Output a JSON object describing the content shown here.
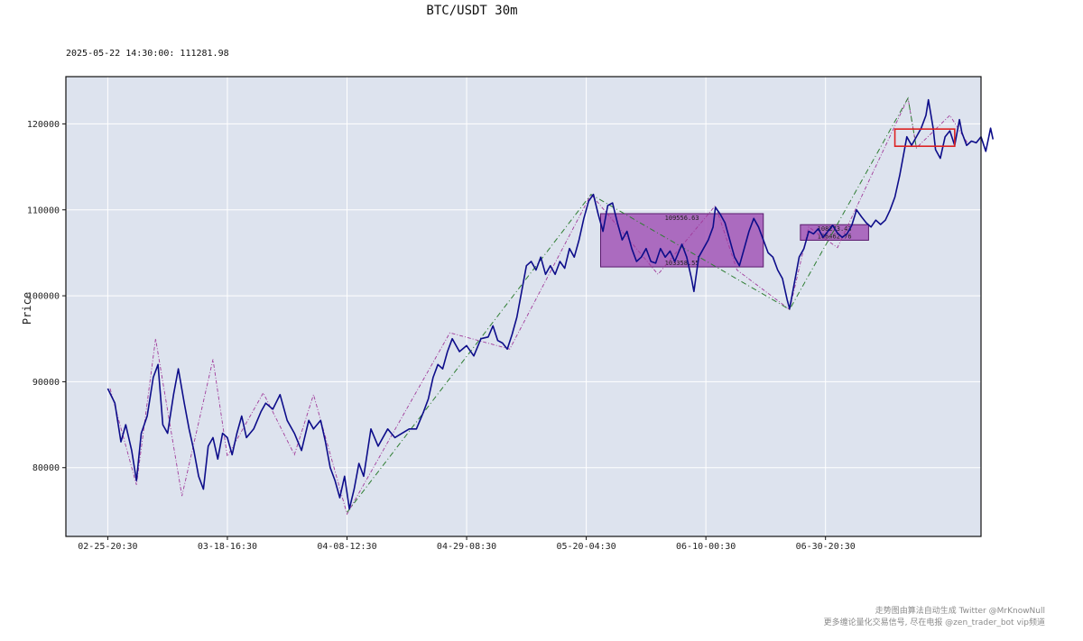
{
  "chart_data": {
    "type": "line",
    "title": "BTC/USDT 30m",
    "info": "2025-05-22 14:30:00: 111281.98",
    "ylabel": "Price",
    "xlabel": "",
    "ylim": [
      72000,
      125500
    ],
    "xlim": [
      -3.5,
      73
    ],
    "grid": true,
    "colors": {
      "price": "#0d0d8a",
      "plot_bg": "#dde3ee",
      "grid": "#ffffff",
      "zone": "#a050b4",
      "zone_edge": "#5a1a6e",
      "recent_box": "#dd2222",
      "zigzag_major": "#2e7d32",
      "zigzag_minor": "#a03a9a"
    },
    "y_ticks": [
      80000,
      90000,
      100000,
      110000,
      120000
    ],
    "x_ticks": [
      {
        "x": 0,
        "label": "02-25-20:30"
      },
      {
        "x": 10,
        "label": "03-18-16:30"
      },
      {
        "x": 20,
        "label": "04-08-12:30"
      },
      {
        "x": 30,
        "label": "04-29-08:30"
      },
      {
        "x": 40,
        "label": "05-20-04:30"
      },
      {
        "x": 50,
        "label": "06-10-00:30"
      },
      {
        "x": 60,
        "label": "06-30-20:30"
      }
    ],
    "series": [
      {
        "values": [
          [
            0,
            89200
          ],
          [
            0.6,
            87500
          ],
          [
            1.1,
            83000
          ],
          [
            1.5,
            85000
          ],
          [
            2.0,
            82000
          ],
          [
            2.4,
            78500
          ],
          [
            2.8,
            84000
          ],
          [
            3.3,
            86000
          ],
          [
            3.8,
            90500
          ],
          [
            4.2,
            92000
          ],
          [
            4.6,
            85000
          ],
          [
            5.0,
            84000
          ],
          [
            5.5,
            88500
          ],
          [
            5.9,
            91500
          ],
          [
            6.4,
            87500
          ],
          [
            6.8,
            84500
          ],
          [
            7.2,
            82000
          ],
          [
            7.6,
            79000
          ],
          [
            8.0,
            77500
          ],
          [
            8.4,
            82500
          ],
          [
            8.8,
            83500
          ],
          [
            9.2,
            81000
          ],
          [
            9.6,
            84000
          ],
          [
            10.0,
            83500
          ],
          [
            10.4,
            81500
          ],
          [
            10.8,
            84000
          ],
          [
            11.2,
            86000
          ],
          [
            11.6,
            83500
          ],
          [
            12.2,
            84500
          ],
          [
            12.8,
            86500
          ],
          [
            13.2,
            87500
          ],
          [
            13.8,
            86800
          ],
          [
            14.4,
            88500
          ],
          [
            15.0,
            85500
          ],
          [
            15.6,
            84000
          ],
          [
            16.2,
            82000
          ],
          [
            16.8,
            85500
          ],
          [
            17.2,
            84500
          ],
          [
            17.8,
            85500
          ],
          [
            18.2,
            83000
          ],
          [
            18.6,
            80000
          ],
          [
            19.0,
            78500
          ],
          [
            19.4,
            76500
          ],
          [
            19.8,
            79000
          ],
          [
            20.2,
            75200
          ],
          [
            20.6,
            77500
          ],
          [
            21.0,
            80500
          ],
          [
            21.4,
            79000
          ],
          [
            22.0,
            84500
          ],
          [
            22.6,
            82500
          ],
          [
            23.4,
            84500
          ],
          [
            24.0,
            83500
          ],
          [
            24.6,
            84000
          ],
          [
            25.2,
            84500
          ],
          [
            25.8,
            84500
          ],
          [
            26.4,
            86500
          ],
          [
            26.8,
            88000
          ],
          [
            27.2,
            90500
          ],
          [
            27.6,
            92000
          ],
          [
            28.0,
            91500
          ],
          [
            28.4,
            93500
          ],
          [
            28.8,
            95000
          ],
          [
            29.4,
            93500
          ],
          [
            30.0,
            94200
          ],
          [
            30.6,
            93000
          ],
          [
            31.2,
            95000
          ],
          [
            31.8,
            95200
          ],
          [
            32.2,
            96500
          ],
          [
            32.6,
            94800
          ],
          [
            33.0,
            94500
          ],
          [
            33.4,
            93800
          ],
          [
            33.8,
            95500
          ],
          [
            34.2,
            97500
          ],
          [
            34.6,
            100500
          ],
          [
            35.0,
            103500
          ],
          [
            35.4,
            104000
          ],
          [
            35.8,
            103000
          ],
          [
            36.2,
            104500
          ],
          [
            36.6,
            102500
          ],
          [
            37.0,
            103500
          ],
          [
            37.4,
            102500
          ],
          [
            37.8,
            104000
          ],
          [
            38.2,
            103200
          ],
          [
            38.6,
            105500
          ],
          [
            39.0,
            104500
          ],
          [
            39.4,
            106500
          ],
          [
            39.8,
            109000
          ],
          [
            40.2,
            111000
          ],
          [
            40.6,
            111800
          ],
          [
            41.0,
            109500
          ],
          [
            41.4,
            107500
          ],
          [
            41.8,
            110500
          ],
          [
            42.2,
            110800
          ],
          [
            42.6,
            108500
          ],
          [
            43.0,
            106500
          ],
          [
            43.4,
            107500
          ],
          [
            43.8,
            105500
          ],
          [
            44.2,
            104000
          ],
          [
            44.6,
            104500
          ],
          [
            45.0,
            105500
          ],
          [
            45.4,
            104000
          ],
          [
            45.8,
            103800
          ],
          [
            46.2,
            105500
          ],
          [
            46.6,
            104500
          ],
          [
            47.0,
            105200
          ],
          [
            47.4,
            104000
          ],
          [
            48.0,
            106000
          ],
          [
            48.4,
            104500
          ],
          [
            48.8,
            102000
          ],
          [
            49.0,
            100500
          ],
          [
            49.4,
            104500
          ],
          [
            49.8,
            105500
          ],
          [
            50.2,
            106500
          ],
          [
            50.6,
            108000
          ],
          [
            50.8,
            110300
          ],
          [
            51.2,
            109500
          ],
          [
            51.6,
            108500
          ],
          [
            52.0,
            106500
          ],
          [
            52.4,
            104500
          ],
          [
            52.8,
            103500
          ],
          [
            53.2,
            105500
          ],
          [
            53.6,
            107500
          ],
          [
            54.0,
            109000
          ],
          [
            54.4,
            108000
          ],
          [
            54.8,
            106500
          ],
          [
            55.2,
            105000
          ],
          [
            55.6,
            104500
          ],
          [
            56.0,
            103000
          ],
          [
            56.4,
            102000
          ],
          [
            56.8,
            99500
          ],
          [
            57.0,
            98500
          ],
          [
            57.4,
            101500
          ],
          [
            57.8,
            104500
          ],
          [
            58.2,
            105500
          ],
          [
            58.6,
            107500
          ],
          [
            59.0,
            107200
          ],
          [
            59.4,
            107800
          ],
          [
            59.8,
            106800
          ],
          [
            60.2,
            107500
          ],
          [
            60.6,
            108200
          ],
          [
            61.0,
            107300
          ],
          [
            61.4,
            106800
          ],
          [
            61.8,
            107200
          ],
          [
            62.2,
            108200
          ],
          [
            62.6,
            110000
          ],
          [
            63.0,
            109200
          ],
          [
            63.4,
            108500
          ],
          [
            63.8,
            108000
          ],
          [
            64.2,
            108800
          ],
          [
            64.6,
            108300
          ],
          [
            65.0,
            108800
          ],
          [
            65.4,
            110000
          ],
          [
            65.8,
            111500
          ],
          [
            66.2,
            114000
          ],
          [
            66.6,
            117000
          ],
          [
            66.8,
            118500
          ],
          [
            67.2,
            117500
          ],
          [
            67.6,
            118500
          ],
          [
            68.0,
            119500
          ],
          [
            68.4,
            121000
          ],
          [
            68.6,
            122800
          ],
          [
            69.0,
            119500
          ],
          [
            69.2,
            117000
          ],
          [
            69.6,
            116000
          ],
          [
            70.0,
            118500
          ],
          [
            70.4,
            119200
          ],
          [
            70.8,
            117500
          ],
          [
            71.2,
            120500
          ],
          [
            71.4,
            119000
          ],
          [
            71.8,
            117500
          ],
          [
            72.2,
            118000
          ],
          [
            72.6,
            117800
          ],
          [
            73.0,
            118500
          ],
          [
            73.4,
            116800
          ],
          [
            73.8,
            119500
          ],
          [
            74.0,
            118200
          ]
        ]
      }
    ],
    "zigzag_major": [
      [
        20.0,
        74800
      ],
      [
        40.4,
        111800
      ],
      [
        57.0,
        98400
      ],
      [
        66.9,
        123000
      ],
      [
        67.6,
        117200
      ]
    ],
    "zigzag_minor": [
      [
        0.2,
        89200
      ],
      [
        2.4,
        78000
      ],
      [
        4.0,
        95000
      ],
      [
        6.2,
        76700
      ],
      [
        8.8,
        92600
      ],
      [
        10.0,
        81300
      ],
      [
        13.0,
        88700
      ],
      [
        15.6,
        81500
      ],
      [
        17.2,
        88500
      ],
      [
        20.0,
        74600
      ],
      [
        28.6,
        95700
      ],
      [
        33.6,
        93800
      ],
      [
        40.4,
        111800
      ],
      [
        46.0,
        102500
      ],
      [
        50.8,
        110500
      ],
      [
        52.6,
        103000
      ],
      [
        57.0,
        98400
      ],
      [
        58.6,
        108000
      ],
      [
        61.0,
        105600
      ],
      [
        66.9,
        123000
      ],
      [
        67.6,
        117200
      ],
      [
        70.4,
        121000
      ],
      [
        72.0,
        117500
      ]
    ],
    "zones": [
      {
        "x0": 41.2,
        "x1": 54.8,
        "y_top": 109556.63,
        "y_bottom": 103358.55,
        "label_top": "109556.63",
        "label_bottom": "103358.55"
      },
      {
        "x0": 57.9,
        "x1": 63.6,
        "y_top": 108273.43,
        "y_bottom": 106462.76,
        "label_top": "108273.43",
        "label_bottom": "106462.76"
      }
    ],
    "recent_box": {
      "x0": 65.8,
      "x1": 70.8,
      "y_top": 119400,
      "y_bottom": 117400
    }
  },
  "footer": {
    "line1": "走势图由算法自动生成  Twitter @MrKnowNull",
    "line2": "更多缠论量化交易信号, 尽在电报 @zen_trader_bot vip频道"
  }
}
